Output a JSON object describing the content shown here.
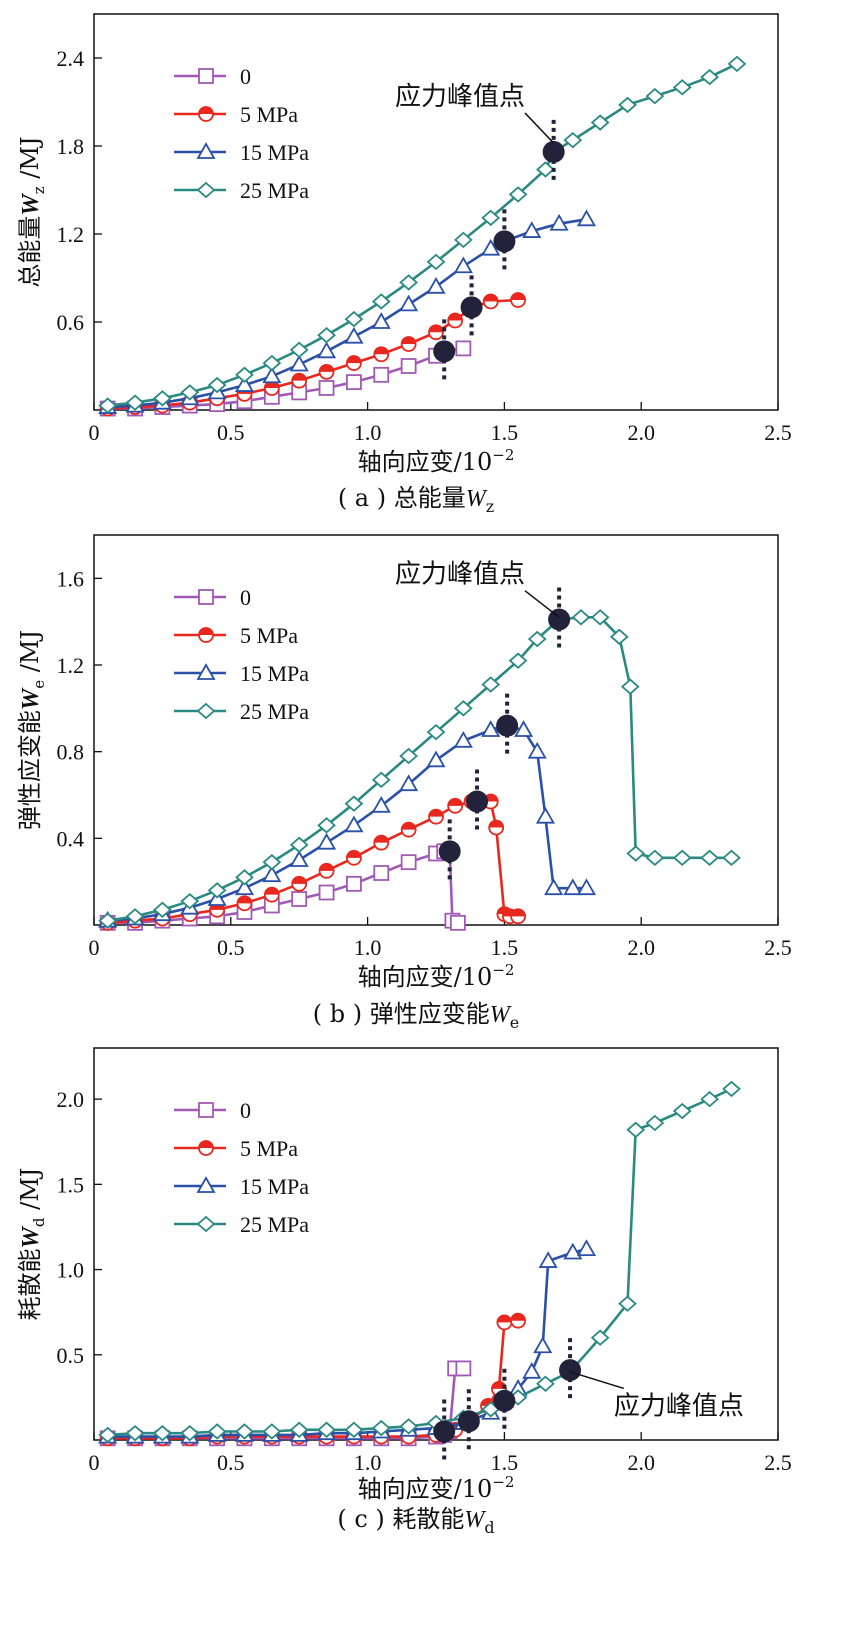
{
  "colors": {
    "series_0": "#a15ab4",
    "series_5": "#e8281e",
    "series_15": "#2a50a8",
    "series_25": "#2a8a82",
    "peak": "#22223a"
  },
  "legend_labels": [
    "0",
    "5 MPa",
    "15 MPa",
    "25 MPa"
  ],
  "chart_data": [
    {
      "type": "line",
      "caption": {
        "prefix": "( a ) 总能量",
        "sym": "W",
        "sub": "z"
      },
      "xlabel": "轴向应变/10",
      "xlabel_sup": "−2",
      "ylabel": {
        "prefix": "总能量",
        "sym": "W",
        "sub": "z",
        "suffix": " /MJ"
      },
      "xlim": [
        0,
        2.5
      ],
      "ylim": [
        0,
        2.7
      ],
      "xticks": [
        "0",
        "0.5",
        "1.0",
        "1.5",
        "2.0",
        "2.5"
      ],
      "yticks": [
        "0.6",
        "1.2",
        "1.8",
        "2.4"
      ],
      "legend_position": "top-left",
      "annotation": {
        "text": "应力峰值点",
        "x": 1.1,
        "y": 2.08,
        "arrow_to": [
          1.68,
          1.82
        ]
      },
      "series": [
        {
          "name": "0",
          "marker": "square",
          "x": [
            0.05,
            0.15,
            0.25,
            0.35,
            0.45,
            0.55,
            0.65,
            0.75,
            0.85,
            0.95,
            1.05,
            1.15,
            1.25,
            1.28,
            1.35
          ],
          "y": [
            0.01,
            0.01,
            0.02,
            0.03,
            0.04,
            0.06,
            0.09,
            0.12,
            0.15,
            0.19,
            0.24,
            0.3,
            0.37,
            0.4,
            0.42
          ]
        },
        {
          "name": "5 MPa",
          "marker": "circle",
          "x": [
            0.05,
            0.15,
            0.25,
            0.35,
            0.45,
            0.55,
            0.65,
            0.75,
            0.85,
            0.95,
            1.05,
            1.15,
            1.25,
            1.32,
            1.38,
            1.45,
            1.55
          ],
          "y": [
            0.01,
            0.02,
            0.03,
            0.05,
            0.08,
            0.11,
            0.15,
            0.2,
            0.26,
            0.32,
            0.38,
            0.45,
            0.53,
            0.61,
            0.7,
            0.74,
            0.75
          ]
        },
        {
          "name": "15 MPa",
          "marker": "triangle",
          "x": [
            0.05,
            0.15,
            0.25,
            0.35,
            0.45,
            0.55,
            0.65,
            0.75,
            0.85,
            0.95,
            1.05,
            1.15,
            1.25,
            1.35,
            1.45,
            1.5,
            1.6,
            1.7,
            1.8
          ],
          "y": [
            0.02,
            0.03,
            0.05,
            0.08,
            0.12,
            0.17,
            0.23,
            0.31,
            0.4,
            0.5,
            0.6,
            0.72,
            0.84,
            0.98,
            1.1,
            1.15,
            1.22,
            1.27,
            1.3
          ]
        },
        {
          "name": "25 MPa",
          "marker": "diamond",
          "x": [
            0.05,
            0.15,
            0.25,
            0.35,
            0.45,
            0.55,
            0.65,
            0.75,
            0.85,
            0.95,
            1.05,
            1.15,
            1.25,
            1.35,
            1.45,
            1.55,
            1.65,
            1.68,
            1.75,
            1.85,
            1.95,
            2.05,
            2.15,
            2.25,
            2.35
          ],
          "y": [
            0.03,
            0.05,
            0.08,
            0.12,
            0.17,
            0.24,
            0.32,
            0.41,
            0.51,
            0.62,
            0.74,
            0.87,
            1.01,
            1.16,
            1.31,
            1.47,
            1.64,
            1.76,
            1.84,
            1.96,
            2.08,
            2.14,
            2.2,
            2.27,
            2.36
          ]
        }
      ],
      "peaks": [
        {
          "x": 1.28,
          "y": 0.4
        },
        {
          "x": 1.38,
          "y": 0.7
        },
        {
          "x": 1.5,
          "y": 1.15
        },
        {
          "x": 1.68,
          "y": 1.76
        }
      ]
    },
    {
      "type": "line",
      "caption": {
        "prefix": "( b ) 弹性应变能",
        "sym": "W",
        "sub": "e"
      },
      "xlabel": "轴向应变/10",
      "xlabel_sup": "−2",
      "ylabel": {
        "prefix": "弹性应变能",
        "sym": "W",
        "sub": "e",
        "suffix": " /MJ"
      },
      "xlim": [
        0,
        2.5
      ],
      "ylim": [
        0,
        1.8
      ],
      "xticks": [
        "0",
        "0.5",
        "1.0",
        "1.5",
        "2.0",
        "2.5"
      ],
      "yticks": [
        "0.4",
        "0.8",
        "1.2",
        "1.6"
      ],
      "legend_position": "top-left",
      "annotation": {
        "text": "应力峰值点",
        "x": 1.1,
        "y": 1.58,
        "arrow_to": [
          1.7,
          1.42
        ]
      },
      "series": [
        {
          "name": "0",
          "marker": "square",
          "x": [
            0.05,
            0.15,
            0.25,
            0.35,
            0.45,
            0.55,
            0.65,
            0.75,
            0.85,
            0.95,
            1.05,
            1.15,
            1.25,
            1.28,
            1.3,
            1.31,
            1.33
          ],
          "y": [
            0.01,
            0.01,
            0.02,
            0.03,
            0.04,
            0.06,
            0.09,
            0.12,
            0.15,
            0.19,
            0.24,
            0.29,
            0.33,
            0.34,
            0.34,
            0.02,
            0.01
          ]
        },
        {
          "name": "5 MPa",
          "marker": "circle",
          "x": [
            0.05,
            0.15,
            0.25,
            0.35,
            0.45,
            0.55,
            0.65,
            0.75,
            0.85,
            0.95,
            1.05,
            1.15,
            1.25,
            1.32,
            1.38,
            1.45,
            1.47,
            1.5,
            1.52,
            1.55
          ],
          "y": [
            0.01,
            0.02,
            0.03,
            0.05,
            0.07,
            0.1,
            0.14,
            0.19,
            0.25,
            0.31,
            0.38,
            0.44,
            0.5,
            0.55,
            0.57,
            0.57,
            0.45,
            0.05,
            0.04,
            0.04
          ]
        },
        {
          "name": "15 MPa",
          "marker": "triangle",
          "x": [
            0.05,
            0.15,
            0.25,
            0.35,
            0.45,
            0.55,
            0.65,
            0.75,
            0.85,
            0.95,
            1.05,
            1.15,
            1.25,
            1.35,
            1.45,
            1.5,
            1.57,
            1.62,
            1.65,
            1.68,
            1.75,
            1.8
          ],
          "y": [
            0.02,
            0.03,
            0.05,
            0.08,
            0.12,
            0.17,
            0.23,
            0.3,
            0.38,
            0.46,
            0.55,
            0.65,
            0.76,
            0.85,
            0.9,
            0.92,
            0.9,
            0.8,
            0.5,
            0.17,
            0.17,
            0.17
          ]
        },
        {
          "name": "25 MPa",
          "marker": "diamond",
          "x": [
            0.05,
            0.15,
            0.25,
            0.35,
            0.45,
            0.55,
            0.65,
            0.75,
            0.85,
            0.95,
            1.05,
            1.15,
            1.25,
            1.35,
            1.45,
            1.55,
            1.62,
            1.7,
            1.78,
            1.85,
            1.92,
            1.96,
            1.98,
            2.05,
            2.15,
            2.25,
            2.33
          ],
          "y": [
            0.02,
            0.04,
            0.07,
            0.11,
            0.16,
            0.22,
            0.29,
            0.37,
            0.46,
            0.56,
            0.67,
            0.78,
            0.89,
            1.0,
            1.11,
            1.22,
            1.32,
            1.41,
            1.42,
            1.42,
            1.33,
            1.1,
            0.33,
            0.31,
            0.31,
            0.31,
            0.31
          ]
        }
      ],
      "peaks": [
        {
          "x": 1.3,
          "y": 0.34
        },
        {
          "x": 1.4,
          "y": 0.57
        },
        {
          "x": 1.51,
          "y": 0.92
        },
        {
          "x": 1.7,
          "y": 1.41
        }
      ]
    },
    {
      "type": "line",
      "caption": {
        "prefix": "( c ) 耗散能",
        "sym": "W",
        "sub": "d"
      },
      "xlabel": "轴向应变/10",
      "xlabel_sup": "−2",
      "ylabel": {
        "prefix": "耗散能",
        "sym": "W",
        "sub": "d",
        "suffix": " /MJ"
      },
      "xlim": [
        0,
        2.5
      ],
      "ylim": [
        0,
        2.3
      ],
      "xticks": [
        "0",
        "0.5",
        "1.0",
        "1.5",
        "2.0",
        "2.5"
      ],
      "yticks": [
        "0.5",
        "1.0",
        "1.5",
        "2.0"
      ],
      "legend_position": "top-left",
      "annotation": {
        "text": "应力峰值点",
        "x": 1.9,
        "y": 0.15,
        "arrow_to": [
          1.74,
          0.4
        ]
      },
      "series": [
        {
          "name": "0",
          "marker": "square",
          "x": [
            0.05,
            0.15,
            0.25,
            0.35,
            0.45,
            0.55,
            0.65,
            0.75,
            0.85,
            0.95,
            1.05,
            1.15,
            1.25,
            1.28,
            1.3,
            1.32,
            1.35
          ],
          "y": [
            0.01,
            0.01,
            0.01,
            0.01,
            0.01,
            0.01,
            0.01,
            0.01,
            0.01,
            0.01,
            0.01,
            0.01,
            0.02,
            0.03,
            0.05,
            0.42,
            0.42
          ]
        },
        {
          "name": "5 MPa",
          "marker": "circle",
          "x": [
            0.05,
            0.15,
            0.25,
            0.35,
            0.45,
            0.55,
            0.65,
            0.75,
            0.85,
            0.95,
            1.05,
            1.15,
            1.25,
            1.32,
            1.38,
            1.44,
            1.48,
            1.5,
            1.55
          ],
          "y": [
            0.01,
            0.01,
            0.01,
            0.01,
            0.02,
            0.02,
            0.02,
            0.02,
            0.02,
            0.02,
            0.02,
            0.02,
            0.03,
            0.06,
            0.12,
            0.2,
            0.3,
            0.69,
            0.7
          ]
        },
        {
          "name": "15 MPa",
          "marker": "triangle",
          "x": [
            0.05,
            0.15,
            0.25,
            0.35,
            0.45,
            0.55,
            0.65,
            0.75,
            0.85,
            0.95,
            1.05,
            1.15,
            1.25,
            1.35,
            1.45,
            1.5,
            1.55,
            1.6,
            1.64,
            1.66,
            1.75,
            1.8
          ],
          "y": [
            0.02,
            0.02,
            0.02,
            0.02,
            0.03,
            0.03,
            0.03,
            0.03,
            0.04,
            0.04,
            0.05,
            0.06,
            0.07,
            0.1,
            0.16,
            0.23,
            0.3,
            0.4,
            0.55,
            1.05,
            1.1,
            1.12
          ]
        },
        {
          "name": "25 MPa",
          "marker": "diamond",
          "x": [
            0.05,
            0.15,
            0.25,
            0.35,
            0.45,
            0.55,
            0.65,
            0.75,
            0.85,
            0.95,
            1.05,
            1.15,
            1.25,
            1.35,
            1.45,
            1.55,
            1.65,
            1.74,
            1.85,
            1.95,
            1.98,
            2.05,
            2.15,
            2.25,
            2.33
          ],
          "y": [
            0.03,
            0.04,
            0.04,
            0.04,
            0.05,
            0.05,
            0.05,
            0.06,
            0.06,
            0.06,
            0.07,
            0.08,
            0.1,
            0.13,
            0.18,
            0.25,
            0.33,
            0.4,
            0.6,
            0.8,
            1.82,
            1.86,
            1.93,
            2.0,
            2.06
          ]
        }
      ],
      "peaks": [
        {
          "x": 1.28,
          "y": 0.05
        },
        {
          "x": 1.37,
          "y": 0.11
        },
        {
          "x": 1.5,
          "y": 0.23
        },
        {
          "x": 1.74,
          "y": 0.41
        }
      ]
    }
  ]
}
